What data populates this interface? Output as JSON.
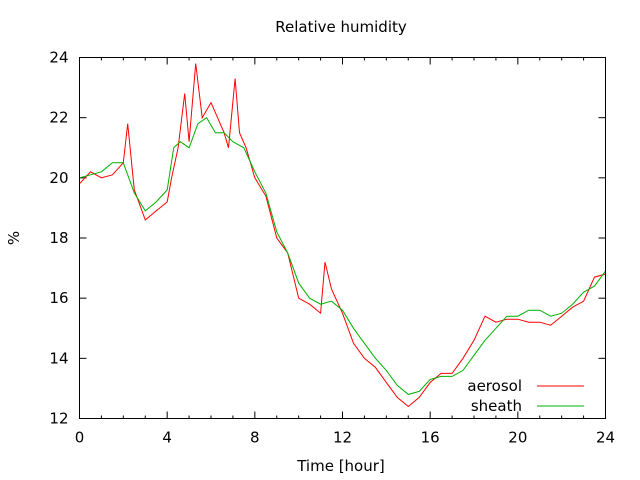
{
  "chart_data": {
    "type": "line",
    "title": "Relative humidity",
    "xlabel": "Time [hour]",
    "ylabel": "%",
    "xlim": [
      0,
      24
    ],
    "ylim": [
      12,
      24
    ],
    "xticks": [
      0,
      4,
      8,
      12,
      16,
      20,
      24
    ],
    "yticks": [
      12,
      14,
      16,
      18,
      20,
      22,
      24
    ],
    "xtick_labels": [
      "0",
      "4",
      "8",
      "12",
      "16",
      "20",
      "24"
    ],
    "ytick_labels": [
      "12",
      "14",
      "16",
      "18",
      "20",
      "22",
      "24"
    ],
    "grid": false,
    "legend_position": "bottom-right",
    "series": [
      {
        "name": "aerosol",
        "color": "#ff0000",
        "x": [
          0,
          0.5,
          1,
          1.5,
          2,
          2.2,
          2.5,
          3,
          3.5,
          4,
          4.2,
          4.5,
          4.8,
          5,
          5.3,
          5.6,
          6,
          6.3,
          6.6,
          6.8,
          7.1,
          7.3,
          7.6,
          8,
          8.5,
          9,
          9.5,
          10,
          10.5,
          11,
          11.2,
          11.5,
          12,
          12.5,
          13,
          13.5,
          14,
          14.5,
          15,
          15.5,
          16,
          16.5,
          17,
          17.5,
          18,
          18.5,
          19,
          19.5,
          20,
          20.5,
          21,
          21.5,
          22,
          22.5,
          23,
          23.5,
          24
        ],
        "y": [
          19.8,
          20.2,
          20.0,
          20.1,
          20.5,
          21.8,
          19.6,
          18.6,
          18.9,
          19.2,
          20.0,
          21.0,
          22.8,
          21.2,
          23.8,
          22.0,
          22.5,
          22.0,
          21.5,
          21.0,
          23.3,
          21.5,
          21.0,
          20.0,
          19.4,
          18.0,
          17.5,
          16.0,
          15.8,
          15.5,
          17.2,
          16.3,
          15.5,
          14.5,
          14.0,
          13.7,
          13.2,
          12.7,
          12.4,
          12.7,
          13.2,
          13.5,
          13.5,
          14.0,
          14.6,
          15.4,
          15.2,
          15.3,
          15.3,
          15.2,
          15.2,
          15.1,
          15.4,
          15.7,
          15.9,
          16.7,
          16.8
        ]
      },
      {
        "name": "sheath",
        "color": "#00b000",
        "x": [
          0,
          0.5,
          1,
          1.5,
          2,
          2.5,
          3,
          3.5,
          4,
          4.3,
          4.6,
          5,
          5.4,
          5.8,
          6.2,
          6.6,
          7,
          7.5,
          8,
          8.5,
          9,
          9.5,
          10,
          10.5,
          11,
          11.5,
          12,
          12.5,
          13,
          13.5,
          14,
          14.5,
          15,
          15.5,
          16,
          16.5,
          17,
          17.5,
          18,
          18.5,
          19,
          19.5,
          20,
          20.5,
          21,
          21.5,
          22,
          22.5,
          23,
          23.5,
          24
        ],
        "y": [
          20.0,
          20.1,
          20.2,
          20.5,
          20.5,
          19.5,
          18.9,
          19.2,
          19.6,
          21.0,
          21.2,
          21.0,
          21.8,
          22.0,
          21.5,
          21.5,
          21.2,
          21.0,
          20.2,
          19.5,
          18.2,
          17.5,
          16.5,
          16.0,
          15.8,
          15.9,
          15.6,
          15.0,
          14.5,
          14.0,
          13.6,
          13.1,
          12.8,
          12.9,
          13.3,
          13.4,
          13.4,
          13.6,
          14.1,
          14.6,
          15.0,
          15.4,
          15.4,
          15.6,
          15.6,
          15.4,
          15.5,
          15.8,
          16.2,
          16.4,
          16.9
        ]
      }
    ]
  }
}
